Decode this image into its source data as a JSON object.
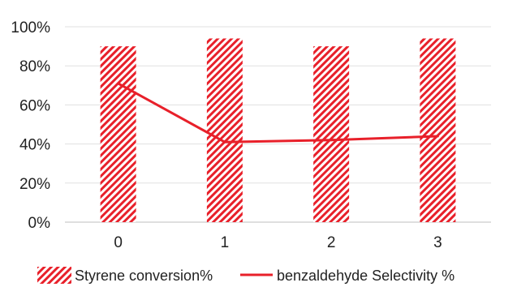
{
  "chart_data": {
    "type": "bar",
    "categories": [
      "0",
      "1",
      "2",
      "3"
    ],
    "series": [
      {
        "name": "Styrene conversion%",
        "kind": "bar",
        "values": [
          90,
          94,
          90,
          94
        ],
        "color": "#e8202a",
        "pattern": "diagonal-hatch"
      },
      {
        "name": "benzaldehyde Selectivity %",
        "kind": "line",
        "values": [
          71,
          41,
          42,
          44
        ],
        "color": "#e8202a"
      }
    ],
    "ylim": [
      0,
      100
    ],
    "yticks": [
      "0%",
      "20%",
      "40%",
      "60%",
      "80%",
      "100%"
    ],
    "grid": true,
    "legend": "bottom"
  }
}
